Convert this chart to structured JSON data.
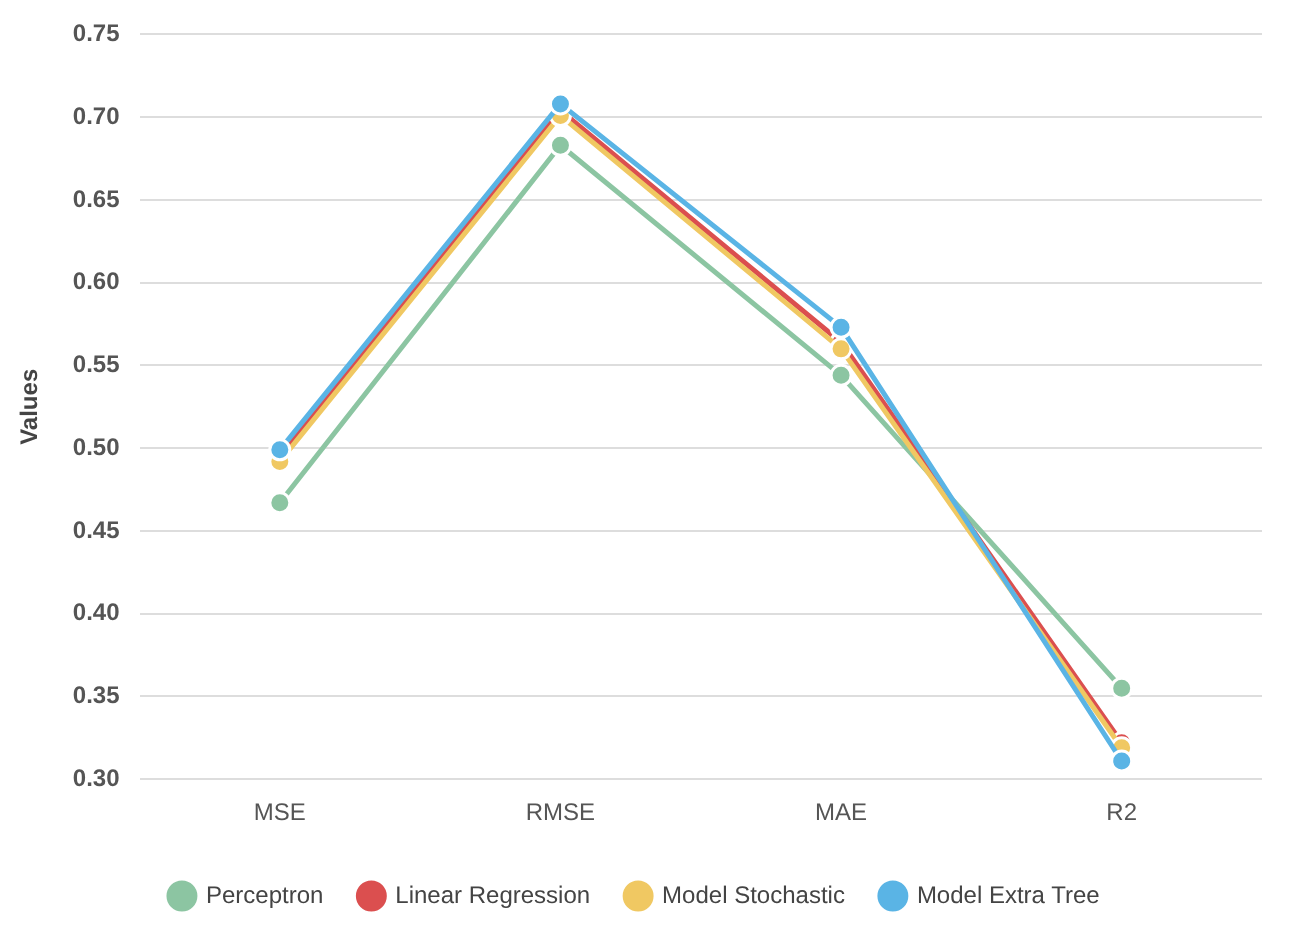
{
  "chart_data": {
    "type": "line",
    "ylabel": "Values",
    "categories": [
      "MSE",
      "RMSE",
      "MAE",
      "R2"
    ],
    "series": [
      {
        "name": "Perceptron",
        "color": "#8cc5a2",
        "values": [
          0.467,
          0.683,
          0.544,
          0.355
        ]
      },
      {
        "name": "Linear Regression",
        "color": "#db4f4f",
        "values": [
          0.496,
          0.704,
          0.564,
          0.322
        ]
      },
      {
        "name": "Model Stochastic",
        "color": "#f0c862",
        "values": [
          0.492,
          0.701,
          0.56,
          0.319
        ]
      },
      {
        "name": "Model Extra Tree",
        "color": "#5ab4e5",
        "values": [
          0.499,
          0.708,
          0.573,
          0.311
        ]
      }
    ],
    "ylim": [
      0.3,
      0.75
    ],
    "yticks": [
      {
        "value": 0.3,
        "label": "0.30"
      },
      0.35,
      {
        "value": 0.4,
        "label": "0.40"
      },
      0.45,
      {
        "value": 0.5,
        "label": "0.50"
      },
      0.55,
      {
        "value": 0.6,
        "label": "0.60"
      },
      0.65,
      {
        "value": 0.7,
        "label": "0.70"
      },
      0.75
    ],
    "grid": "y",
    "legend": "bottom",
    "marker": "circle",
    "line_style": "solid"
  }
}
